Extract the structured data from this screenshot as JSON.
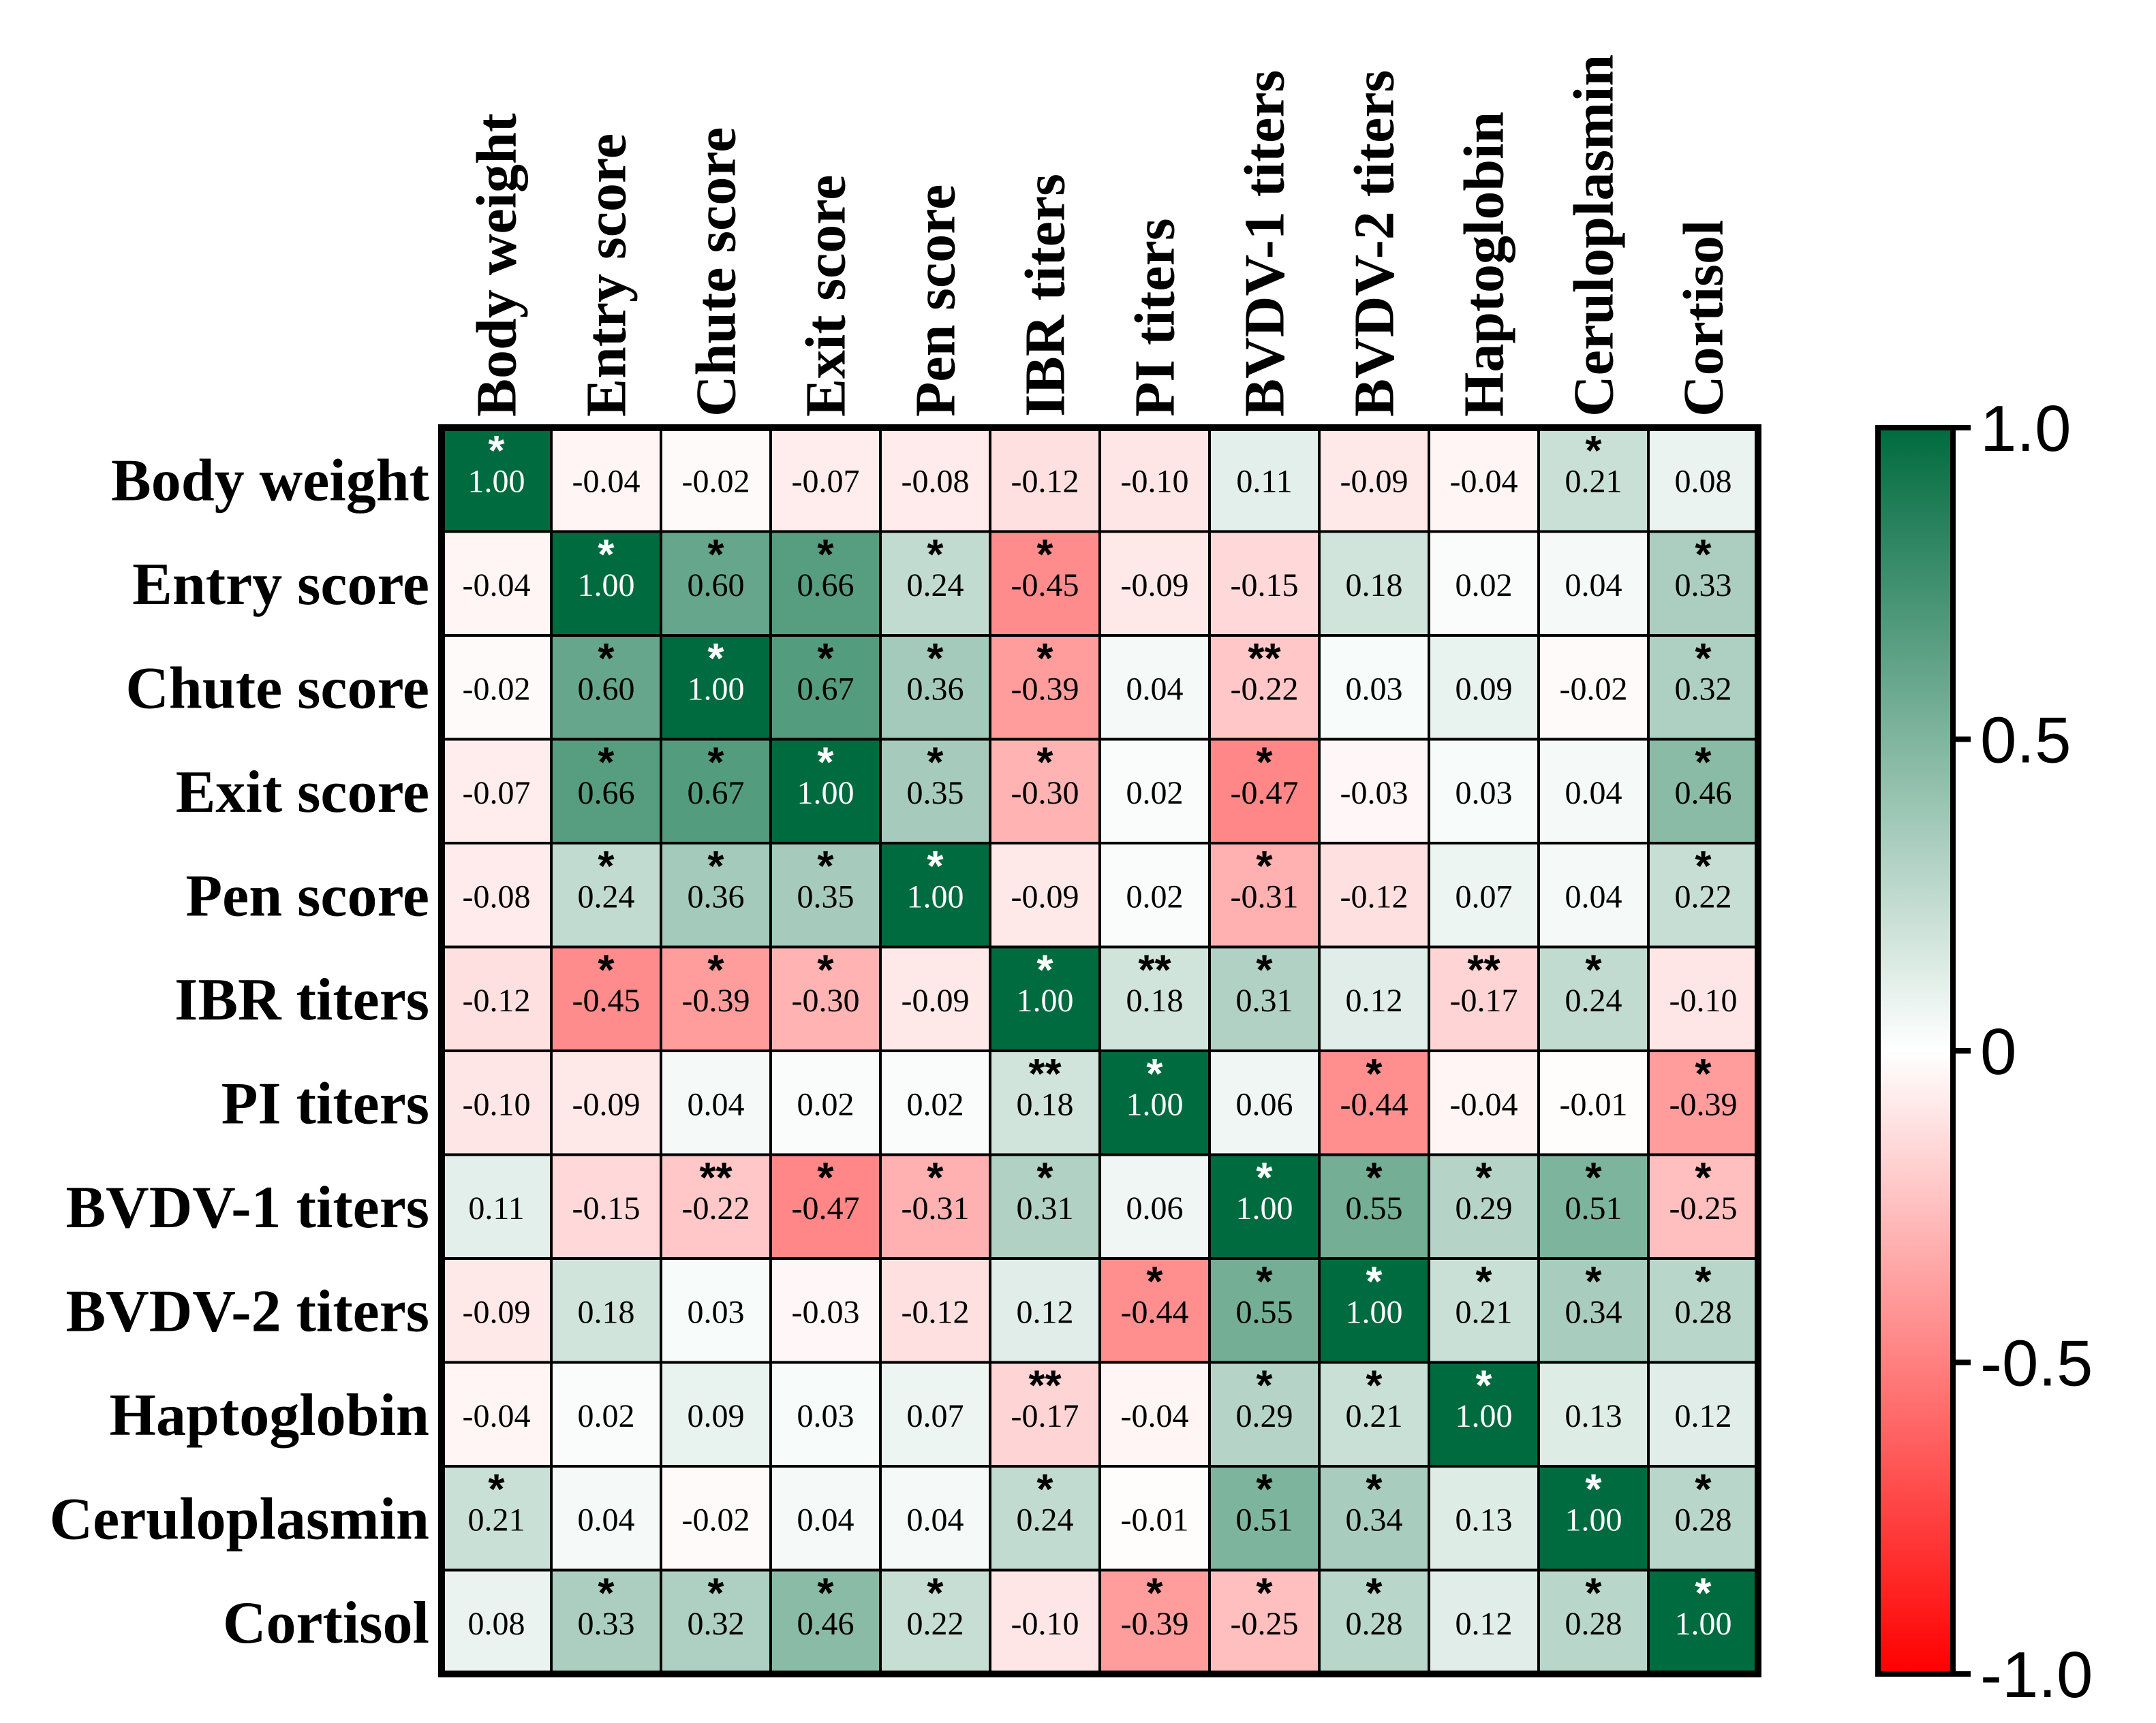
{
  "chart_data": {
    "type": "heatmap",
    "title": "",
    "labels": [
      "Body weight",
      "Entry score",
      "Chute score",
      "Exit score",
      "Pen score",
      "IBR titers",
      "PI titers",
      "BVDV-1 titers",
      "BVDV-2 titers",
      "Haptoglobin",
      "Ceruloplasmin",
      "Cortisol"
    ],
    "values": [
      [
        1.0,
        -0.04,
        -0.02,
        -0.07,
        -0.08,
        -0.12,
        -0.1,
        0.11,
        -0.09,
        -0.04,
        0.21,
        0.08
      ],
      [
        -0.04,
        1.0,
        0.6,
        0.66,
        0.24,
        -0.45,
        -0.09,
        -0.15,
        0.18,
        0.02,
        0.04,
        0.33
      ],
      [
        -0.02,
        0.6,
        1.0,
        0.67,
        0.36,
        -0.39,
        0.04,
        -0.22,
        0.03,
        0.09,
        -0.02,
        0.32
      ],
      [
        -0.07,
        0.66,
        0.67,
        1.0,
        0.35,
        -0.3,
        0.02,
        -0.47,
        -0.03,
        0.03,
        0.04,
        0.46
      ],
      [
        -0.08,
        0.24,
        0.36,
        0.35,
        1.0,
        -0.09,
        0.02,
        -0.31,
        -0.12,
        0.07,
        0.04,
        0.22
      ],
      [
        -0.12,
        -0.45,
        -0.39,
        -0.3,
        -0.09,
        1.0,
        0.18,
        0.31,
        0.12,
        -0.17,
        0.24,
        -0.1
      ],
      [
        -0.1,
        -0.09,
        0.04,
        0.02,
        0.02,
        0.18,
        1.0,
        0.06,
        -0.44,
        -0.04,
        -0.01,
        -0.39
      ],
      [
        0.11,
        -0.15,
        -0.22,
        -0.47,
        -0.31,
        0.31,
        0.06,
        1.0,
        0.55,
        0.29,
        0.51,
        -0.25
      ],
      [
        -0.09,
        0.18,
        0.03,
        -0.03,
        -0.12,
        0.12,
        -0.44,
        0.55,
        1.0,
        0.21,
        0.34,
        0.28
      ],
      [
        -0.04,
        0.02,
        0.09,
        0.03,
        0.07,
        -0.17,
        -0.04,
        0.29,
        0.21,
        1.0,
        0.13,
        0.12
      ],
      [
        0.21,
        0.04,
        -0.02,
        0.04,
        0.04,
        0.24,
        -0.01,
        0.51,
        0.34,
        0.13,
        1.0,
        0.28
      ],
      [
        0.08,
        0.33,
        0.32,
        0.46,
        0.22,
        -0.1,
        -0.39,
        -0.25,
        0.28,
        0.12,
        0.28,
        1.0
      ]
    ],
    "significance": [
      [
        "*",
        "",
        "",
        "",
        "",
        "",
        "",
        "",
        "",
        "",
        "*",
        ""
      ],
      [
        "",
        "*",
        "*",
        "*",
        "*",
        "*",
        "",
        "",
        "",
        "",
        "",
        "*"
      ],
      [
        "",
        "*",
        "*",
        "*",
        "*",
        "*",
        "",
        "**",
        "",
        "",
        "",
        "*"
      ],
      [
        "",
        "*",
        "*",
        "*",
        "*",
        "*",
        "",
        "*",
        "",
        "",
        "",
        "*"
      ],
      [
        "",
        "*",
        "*",
        "*",
        "*",
        "",
        "",
        "*",
        "",
        "",
        "",
        "*"
      ],
      [
        "",
        "*",
        "*",
        "*",
        "",
        "*",
        "**",
        "*",
        "",
        "**",
        "*",
        ""
      ],
      [
        "",
        "",
        "",
        "",
        "",
        "**",
        "*",
        "",
        "*",
        "",
        "",
        "*"
      ],
      [
        "",
        "",
        "**",
        "*",
        "*",
        "*",
        "",
        "*",
        "*",
        "*",
        "*",
        "*"
      ],
      [
        "",
        "",
        "",
        "",
        "",
        "",
        "*",
        "*",
        "*",
        "*",
        "*",
        "*"
      ],
      [
        "",
        "",
        "",
        "",
        "",
        "**",
        "",
        "*",
        "*",
        "*",
        "",
        ""
      ],
      [
        "*",
        "",
        "",
        "",
        "",
        "*",
        "",
        "*",
        "*",
        "",
        "*",
        "*"
      ],
      [
        "",
        "*",
        "*",
        "*",
        "*",
        "",
        "*",
        "*",
        "*",
        "",
        "*",
        "*"
      ]
    ],
    "colorbar": {
      "range": [
        -1.0,
        1.0
      ],
      "tick_labels": [
        "1.0",
        "0.5",
        "0",
        "-0.5",
        "-1.0"
      ],
      "tick_values": [
        1.0,
        0.5,
        0,
        -0.5,
        -1.0
      ],
      "high_color": "#006b3f",
      "mid_color": "#ffffff",
      "low_color": "#ff0000"
    }
  }
}
